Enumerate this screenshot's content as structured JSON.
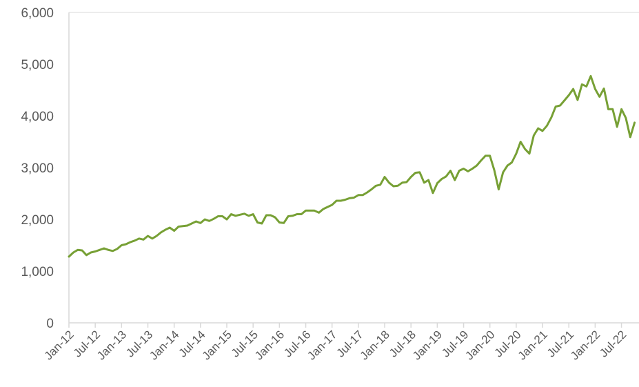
{
  "chart_data": {
    "type": "line",
    "title": "",
    "xlabel": "",
    "ylabel": "",
    "ylim": [
      0,
      6000
    ],
    "xlim": [
      "2012-01",
      "2022-10"
    ],
    "grid": false,
    "legend": "none",
    "y_ticks": [
      "0",
      "1,000",
      "2,000",
      "3,000",
      "4,000",
      "5,000",
      "6,000"
    ],
    "x_ticks": [
      "Jan-12",
      "Jul-12",
      "Jan-13",
      "Jul-13",
      "Jan-14",
      "Jul-14",
      "Jan-15",
      "Jul-15",
      "Jan-16",
      "Jul-16",
      "Jan-17",
      "Jul-17",
      "Jan-18",
      "Jul-18",
      "Jan-19",
      "Jul-19",
      "Jan-20",
      "Jul-20",
      "Jan-21",
      "Jul-21",
      "Jan-22",
      "Jul-22"
    ],
    "colors": {
      "line": "#77a035",
      "axis": "#d9d9d9",
      "text": "#595959"
    },
    "series": [
      {
        "x": [
          "2012-01",
          "2012-02",
          "2012-03",
          "2012-04",
          "2012-05",
          "2012-06",
          "2012-07",
          "2012-08",
          "2012-09",
          "2012-10",
          "2012-11",
          "2012-12",
          "2013-01",
          "2013-02",
          "2013-03",
          "2013-04",
          "2013-05",
          "2013-06",
          "2013-07",
          "2013-08",
          "2013-09",
          "2013-10",
          "2013-11",
          "2013-12",
          "2014-01",
          "2014-02",
          "2014-03",
          "2014-04",
          "2014-05",
          "2014-06",
          "2014-07",
          "2014-08",
          "2014-09",
          "2014-10",
          "2014-11",
          "2014-12",
          "2015-01",
          "2015-02",
          "2015-03",
          "2015-04",
          "2015-05",
          "2015-06",
          "2015-07",
          "2015-08",
          "2015-09",
          "2015-10",
          "2015-11",
          "2015-12",
          "2016-01",
          "2016-02",
          "2016-03",
          "2016-04",
          "2016-05",
          "2016-06",
          "2016-07",
          "2016-08",
          "2016-09",
          "2016-10",
          "2016-11",
          "2016-12",
          "2017-01",
          "2017-02",
          "2017-03",
          "2017-04",
          "2017-05",
          "2017-06",
          "2017-07",
          "2017-08",
          "2017-09",
          "2017-10",
          "2017-11",
          "2017-12",
          "2018-01",
          "2018-02",
          "2018-03",
          "2018-04",
          "2018-05",
          "2018-06",
          "2018-07",
          "2018-08",
          "2018-09",
          "2018-10",
          "2018-11",
          "2018-12",
          "2019-01",
          "2019-02",
          "2019-03",
          "2019-04",
          "2019-05",
          "2019-06",
          "2019-07",
          "2019-08",
          "2019-09",
          "2019-10",
          "2019-11",
          "2019-12",
          "2020-01",
          "2020-02",
          "2020-03",
          "2020-04",
          "2020-05",
          "2020-06",
          "2020-07",
          "2020-08",
          "2020-09",
          "2020-10",
          "2020-11",
          "2020-12",
          "2021-01",
          "2021-02",
          "2021-03",
          "2021-04",
          "2021-05",
          "2021-06",
          "2021-07",
          "2021-08",
          "2021-09",
          "2021-10",
          "2021-11",
          "2021-12",
          "2022-01",
          "2022-02",
          "2022-03",
          "2022-04",
          "2022-05",
          "2022-06",
          "2022-07",
          "2022-08",
          "2022-09",
          "2022-10"
        ],
        "values": [
          1280,
          1360,
          1410,
          1400,
          1310,
          1360,
          1380,
          1410,
          1440,
          1410,
          1390,
          1430,
          1500,
          1520,
          1560,
          1590,
          1630,
          1610,
          1680,
          1630,
          1680,
          1750,
          1800,
          1840,
          1780,
          1860,
          1870,
          1880,
          1920,
          1960,
          1930,
          2000,
          1970,
          2010,
          2060,
          2060,
          2000,
          2100,
          2070,
          2090,
          2110,
          2070,
          2100,
          1940,
          1920,
          2080,
          2080,
          2040,
          1940,
          1930,
          2060,
          2070,
          2100,
          2100,
          2170,
          2170,
          2170,
          2130,
          2200,
          2240,
          2280,
          2360,
          2360,
          2380,
          2410,
          2420,
          2470,
          2470,
          2520,
          2580,
          2650,
          2670,
          2820,
          2710,
          2640,
          2650,
          2710,
          2720,
          2820,
          2900,
          2910,
          2710,
          2760,
          2510,
          2700,
          2780,
          2830,
          2940,
          2760,
          2940,
          2980,
          2930,
          2980,
          3040,
          3140,
          3230,
          3230,
          2950,
          2580,
          2910,
          3040,
          3100,
          3270,
          3500,
          3360,
          3270,
          3620,
          3760,
          3710,
          3810,
          3970,
          4180,
          4200,
          4300,
          4400,
          4520,
          4310,
          4610,
          4570,
          4770,
          4520,
          4370,
          4530,
          4130,
          4130,
          3790,
          4130,
          3960,
          3590,
          3870
        ]
      }
    ]
  }
}
